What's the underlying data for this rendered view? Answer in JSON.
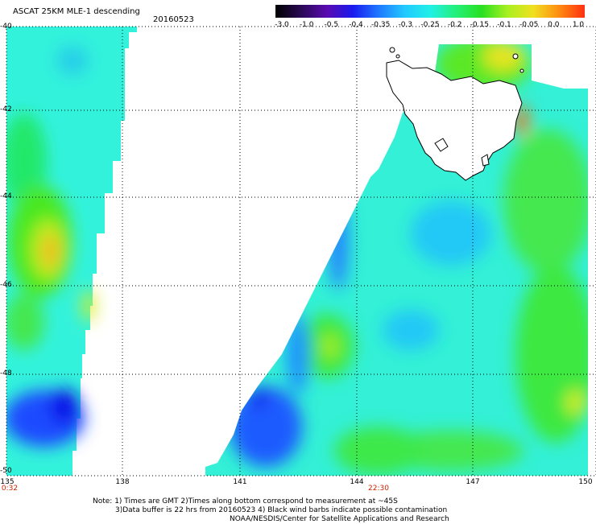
{
  "header": {
    "title": "ASCAT 25KM MLE-1 descending",
    "date": "20160523"
  },
  "colorbar": {
    "labels": [
      "-3.0",
      "-1.0",
      "-0.5",
      "-0.4",
      "-0.35",
      "-0.3",
      "-0.25",
      "-0.2",
      "-0.15",
      "-0.1",
      "-0.05",
      "0.0",
      "1.0"
    ],
    "colors": [
      "#000000",
      "#2a0a55",
      "#5a0ab0",
      "#1a1aee",
      "#1e78ff",
      "#22c8ff",
      "#22f0e8",
      "#22f07a",
      "#28e020",
      "#a8f020",
      "#f0e020",
      "#ff8c10",
      "#ff3010"
    ]
  },
  "axes": {
    "lat_labels": [
      "-40",
      "-42",
      "-44",
      "-46",
      "-48",
      "-50"
    ],
    "lon_labels": [
      "135",
      "138",
      "141",
      "144",
      "147",
      "150"
    ],
    "time_labels": [
      "0:32",
      "22:30"
    ]
  },
  "notes": {
    "line1": "Note: 1) Times are GMT 2)Times along bottom correspond to measurement at ~45S",
    "line2": "3)Data buffer is 22 hrs from 20160523 4) Black wind barbs indicate possible contamination",
    "line3": "NOAA/NESDIS/Center for Satellite Applications and Research"
  }
}
